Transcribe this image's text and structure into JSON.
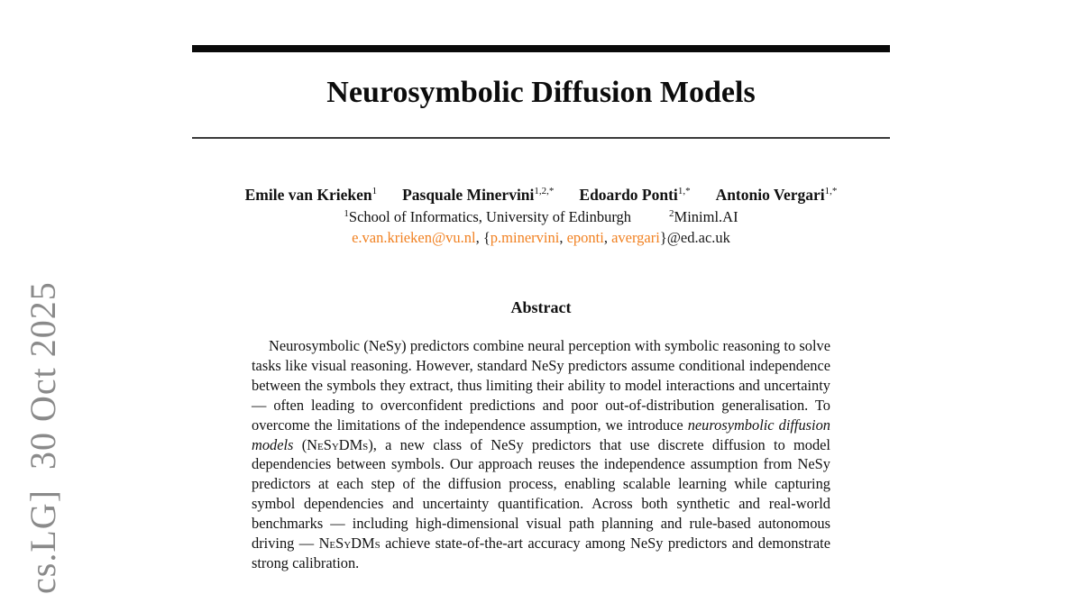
{
  "page": {
    "watermark": "cs.LG]  30 Oct 2025",
    "colors": {
      "link_orange": "#f18121",
      "watermark_gray": "#8a8a8a",
      "rule_black": "#0a0a0a"
    }
  },
  "header": {
    "title": "Neurosymbolic Diffusion Models"
  },
  "authors": [
    {
      "name": "Emile van Krieken",
      "sup": "1"
    },
    {
      "name": "Pasquale Minervini",
      "sup": "1,2,*"
    },
    {
      "name": "Edoardo Ponti",
      "sup": "1,*"
    },
    {
      "name": "Antonio Vergari",
      "sup": "1,*"
    }
  ],
  "affiliations": [
    {
      "sup": "1",
      "name": "School of Informatics, University of Edinburgh"
    },
    {
      "sup": "2",
      "name": "Miniml.AI"
    }
  ],
  "emails": {
    "segments": [
      {
        "text": "e.van.krieken@vu.nl",
        "link": true
      },
      {
        "text": ", {",
        "link": false
      },
      {
        "text": "p.minervini",
        "link": true
      },
      {
        "text": ", ",
        "link": false
      },
      {
        "text": "eponti",
        "link": true
      },
      {
        "text": ", ",
        "link": false
      },
      {
        "text": "avergari",
        "link": true
      },
      {
        "text": "}@ed.ac.uk",
        "link": false
      }
    ]
  },
  "abstract": {
    "heading": "Abstract",
    "runs": [
      {
        "text": "Neurosymbolic (NeSy) predictors combine neural perception with symbolic reasoning to solve tasks like visual reasoning. However, standard NeSy predictors assume conditional independence between the symbols they extract, thus limiting their ability to model interactions and uncertainty — often leading to overconfident predictions and poor out-of-distribution generalisation. To overcome the limitations of the independence assumption, we introduce ",
        "style": "normal"
      },
      {
        "text": "neurosymbolic diffusion models",
        "style": "italic"
      },
      {
        "text": " (",
        "style": "normal"
      },
      {
        "text": "NeSyDMs",
        "style": "smallcaps"
      },
      {
        "text": "), a new class of NeSy predictors that use discrete diffusion to model dependencies between symbols. Our approach reuses the independence assumption from NeSy predictors at each step of the diffusion process, enabling scalable learning while capturing symbol dependencies and uncertainty quantification. Across both synthetic and real-world benchmarks — including high-dimensional visual path planning and rule-based autonomous driving — ",
        "style": "normal"
      },
      {
        "text": "NeSyDMs",
        "style": "smallcaps"
      },
      {
        "text": " achieve state-of-the-art accuracy among NeSy predictors and demonstrate strong calibration.",
        "style": "normal"
      }
    ]
  }
}
